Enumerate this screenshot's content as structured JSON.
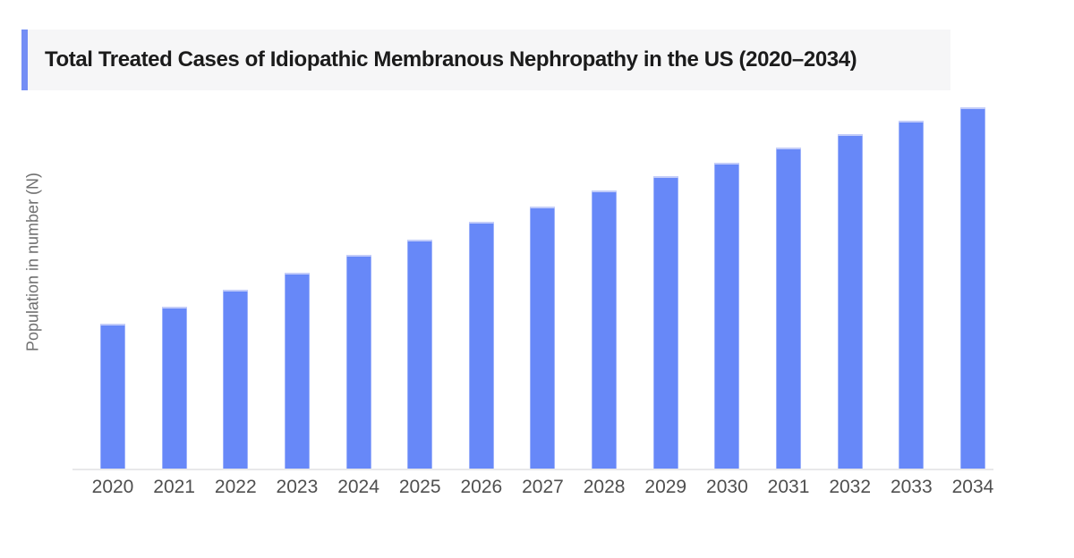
{
  "header": {
    "title": "Total Treated Cases of Idiopathic Membranous Nephropathy in the US (2020–2034)",
    "accent_color": "#748ef5",
    "strip_bg": "#f6f6f7"
  },
  "chart_data": {
    "type": "bar",
    "title": "Total Treated Cases of Idiopathic Membranous Nephropathy in the US (2020–2034)",
    "categories": [
      "2020",
      "2021",
      "2022",
      "2023",
      "2024",
      "2025",
      "2026",
      "2027",
      "2028",
      "2029",
      "2030",
      "2031",
      "2032",
      "2033",
      "2034"
    ],
    "values": [
      40.1,
      44.8,
      49.5,
      54.2,
      59.2,
      63.4,
      68.3,
      72.5,
      77.0,
      80.9,
      84.7,
      88.9,
      92.6,
      96.3,
      100.0
    ],
    "values_note": "No numeric y-axis ticks are shown in the figure; values are bar heights relative to 2034 = 100",
    "xlabel": "",
    "ylabel": "Population in number (N)",
    "y_ticks_shown": false,
    "grid": false,
    "legend": false,
    "bar_color": "#6788f8",
    "bar_top_edge_color": "#c2ccf9",
    "axis_line_color": "#e8e8ea",
    "tick_label_color": "#4f4f4f",
    "ylabel_color": "#6f6f6f"
  }
}
